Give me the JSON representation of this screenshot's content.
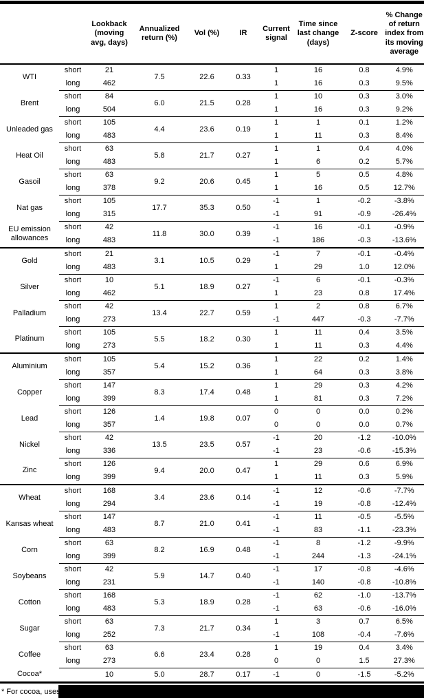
{
  "header": {
    "columns": [
      "Lookback (moving avg, days)",
      "Annualized return (%)",
      "Vol (%)",
      "IR",
      "Current signal",
      "Time since last change (days)",
      "Z-score",
      "% Change of return index from its moving average"
    ]
  },
  "footnote": "* For cocoa, uses c",
  "chart_data": {
    "type": "table",
    "sections": [
      {
        "name": "energy",
        "commodities": [
          {
            "name": "WTI",
            "annualized_return": "7.5",
            "vol": "22.6",
            "ir": "0.33",
            "legs": [
              {
                "label": "short",
                "lookback": "21",
                "signal": "1",
                "days_since_change": "16",
                "z_score": "0.8",
                "pct_change": "4.9%"
              },
              {
                "label": "long",
                "lookback": "462",
                "signal": "1",
                "days_since_change": "16",
                "z_score": "0.3",
                "pct_change": "9.5%"
              }
            ]
          },
          {
            "name": "Brent",
            "annualized_return": "6.0",
            "vol": "21.5",
            "ir": "0.28",
            "legs": [
              {
                "label": "short",
                "lookback": "84",
                "signal": "1",
                "days_since_change": "10",
                "z_score": "0.3",
                "pct_change": "3.0%"
              },
              {
                "label": "long",
                "lookback": "504",
                "signal": "1",
                "days_since_change": "16",
                "z_score": "0.3",
                "pct_change": "9.2%"
              }
            ]
          },
          {
            "name": "Unleaded gas",
            "annualized_return": "4.4",
            "vol": "23.6",
            "ir": "0.19",
            "legs": [
              {
                "label": "short",
                "lookback": "105",
                "signal": "1",
                "days_since_change": "1",
                "z_score": "0.1",
                "pct_change": "1.2%"
              },
              {
                "label": "long",
                "lookback": "483",
                "signal": "1",
                "days_since_change": "11",
                "z_score": "0.3",
                "pct_change": "8.4%"
              }
            ]
          },
          {
            "name": "Heat Oil",
            "annualized_return": "5.8",
            "vol": "21.7",
            "ir": "0.27",
            "legs": [
              {
                "label": "short",
                "lookback": "63",
                "signal": "1",
                "days_since_change": "1",
                "z_score": "0.4",
                "pct_change": "4.0%"
              },
              {
                "label": "long",
                "lookback": "483",
                "signal": "1",
                "days_since_change": "6",
                "z_score": "0.2",
                "pct_change": "5.7%"
              }
            ]
          },
          {
            "name": "Gasoil",
            "annualized_return": "9.2",
            "vol": "20.6",
            "ir": "0.45",
            "legs": [
              {
                "label": "short",
                "lookback": "63",
                "signal": "1",
                "days_since_change": "5",
                "z_score": "0.5",
                "pct_change": "4.8%"
              },
              {
                "label": "long",
                "lookback": "378",
                "signal": "1",
                "days_since_change": "16",
                "z_score": "0.5",
                "pct_change": "12.7%"
              }
            ]
          },
          {
            "name": "Nat gas",
            "annualized_return": "17.7",
            "vol": "35.3",
            "ir": "0.50",
            "legs": [
              {
                "label": "short",
                "lookback": "105",
                "signal": "-1",
                "days_since_change": "1",
                "z_score": "-0.2",
                "pct_change": "-3.8%"
              },
              {
                "label": "long",
                "lookback": "315",
                "signal": "-1",
                "days_since_change": "91",
                "z_score": "-0.9",
                "pct_change": "-26.4%"
              }
            ]
          },
          {
            "name": "EU emission allowances",
            "annualized_return": "11.8",
            "vol": "30.0",
            "ir": "0.39",
            "legs": [
              {
                "label": "short",
                "lookback": "42",
                "signal": "-1",
                "days_since_change": "16",
                "z_score": "-0.1",
                "pct_change": "-0.9%"
              },
              {
                "label": "long",
                "lookback": "483",
                "signal": "-1",
                "days_since_change": "186",
                "z_score": "-0.3",
                "pct_change": "-13.6%"
              }
            ]
          }
        ]
      },
      {
        "name": "precious-metals",
        "commodities": [
          {
            "name": "Gold",
            "annualized_return": "3.1",
            "vol": "10.5",
            "ir": "0.29",
            "legs": [
              {
                "label": "short",
                "lookback": "21",
                "signal": "-1",
                "days_since_change": "7",
                "z_score": "-0.1",
                "pct_change": "-0.4%"
              },
              {
                "label": "long",
                "lookback": "483",
                "signal": "1",
                "days_since_change": "29",
                "z_score": "1.0",
                "pct_change": "12.0%"
              }
            ]
          },
          {
            "name": "Silver",
            "annualized_return": "5.1",
            "vol": "18.9",
            "ir": "0.27",
            "legs": [
              {
                "label": "short",
                "lookback": "10",
                "signal": "-1",
                "days_since_change": "6",
                "z_score": "-0.1",
                "pct_change": "-0.3%"
              },
              {
                "label": "long",
                "lookback": "462",
                "signal": "1",
                "days_since_change": "23",
                "z_score": "0.8",
                "pct_change": "17.4%"
              }
            ]
          },
          {
            "name": "Palladium",
            "annualized_return": "13.4",
            "vol": "22.7",
            "ir": "0.59",
            "legs": [
              {
                "label": "short",
                "lookback": "42",
                "signal": "1",
                "days_since_change": "2",
                "z_score": "0.8",
                "pct_change": "6.7%"
              },
              {
                "label": "long",
                "lookback": "273",
                "signal": "-1",
                "days_since_change": "447",
                "z_score": "-0.3",
                "pct_change": "-7.7%"
              }
            ]
          },
          {
            "name": "Platinum",
            "annualized_return": "5.5",
            "vol": "18.2",
            "ir": "0.30",
            "legs": [
              {
                "label": "short",
                "lookback": "105",
                "signal": "1",
                "days_since_change": "11",
                "z_score": "0.4",
                "pct_change": "3.5%"
              },
              {
                "label": "long",
                "lookback": "273",
                "signal": "1",
                "days_since_change": "11",
                "z_score": "0.3",
                "pct_change": "4.4%"
              }
            ]
          }
        ]
      },
      {
        "name": "base-metals",
        "commodities": [
          {
            "name": "Aluminium",
            "annualized_return": "5.4",
            "vol": "15.2",
            "ir": "0.36",
            "legs": [
              {
                "label": "short",
                "lookback": "105",
                "signal": "1",
                "days_since_change": "22",
                "z_score": "0.2",
                "pct_change": "1.4%"
              },
              {
                "label": "long",
                "lookback": "357",
                "signal": "1",
                "days_since_change": "64",
                "z_score": "0.3",
                "pct_change": "3.8%"
              }
            ]
          },
          {
            "name": "Copper",
            "annualized_return": "8.3",
            "vol": "17.4",
            "ir": "0.48",
            "legs": [
              {
                "label": "short",
                "lookback": "147",
                "signal": "1",
                "days_since_change": "29",
                "z_score": "0.3",
                "pct_change": "4.2%"
              },
              {
                "label": "long",
                "lookback": "399",
                "signal": "1",
                "days_since_change": "81",
                "z_score": "0.3",
                "pct_change": "7.2%"
              }
            ]
          },
          {
            "name": "Lead",
            "annualized_return": "1.4",
            "vol": "19.8",
            "ir": "0.07",
            "legs": [
              {
                "label": "short",
                "lookback": "126",
                "signal": "0",
                "days_since_change": "0",
                "z_score": "0.0",
                "pct_change": "0.2%"
              },
              {
                "label": "long",
                "lookback": "357",
                "signal": "0",
                "days_since_change": "0",
                "z_score": "0.0",
                "pct_change": "0.7%"
              }
            ]
          },
          {
            "name": "Nickel",
            "annualized_return": "13.5",
            "vol": "23.5",
            "ir": "0.57",
            "legs": [
              {
                "label": "short",
                "lookback": "42",
                "signal": "-1",
                "days_since_change": "20",
                "z_score": "-1.2",
                "pct_change": "-10.0%"
              },
              {
                "label": "long",
                "lookback": "336",
                "signal": "-1",
                "days_since_change": "23",
                "z_score": "-0.6",
                "pct_change": "-15.3%"
              }
            ]
          },
          {
            "name": "Zinc",
            "annualized_return": "9.4",
            "vol": "20.0",
            "ir": "0.47",
            "legs": [
              {
                "label": "short",
                "lookback": "126",
                "signal": "1",
                "days_since_change": "29",
                "z_score": "0.6",
                "pct_change": "6.9%"
              },
              {
                "label": "long",
                "lookback": "399",
                "signal": "1",
                "days_since_change": "11",
                "z_score": "0.3",
                "pct_change": "5.9%"
              }
            ]
          }
        ]
      },
      {
        "name": "agriculture",
        "commodities": [
          {
            "name": "Wheat",
            "annualized_return": "3.4",
            "vol": "23.6",
            "ir": "0.14",
            "legs": [
              {
                "label": "short",
                "lookback": "168",
                "signal": "-1",
                "days_since_change": "12",
                "z_score": "-0.6",
                "pct_change": "-7.7%"
              },
              {
                "label": "long",
                "lookback": "294",
                "signal": "-1",
                "days_since_change": "19",
                "z_score": "-0.8",
                "pct_change": "-12.4%"
              }
            ]
          },
          {
            "name": "Kansas wheat",
            "annualized_return": "8.7",
            "vol": "21.0",
            "ir": "0.41",
            "legs": [
              {
                "label": "short",
                "lookback": "147",
                "signal": "-1",
                "days_since_change": "11",
                "z_score": "-0.5",
                "pct_change": "-5.5%"
              },
              {
                "label": "long",
                "lookback": "483",
                "signal": "-1",
                "days_since_change": "83",
                "z_score": "-1.1",
                "pct_change": "-23.3%"
              }
            ]
          },
          {
            "name": "Corn",
            "annualized_return": "8.2",
            "vol": "16.9",
            "ir": "0.48",
            "legs": [
              {
                "label": "short",
                "lookback": "63",
                "signal": "-1",
                "days_since_change": "8",
                "z_score": "-1.2",
                "pct_change": "-9.9%"
              },
              {
                "label": "long",
                "lookback": "399",
                "signal": "-1",
                "days_since_change": "244",
                "z_score": "-1.3",
                "pct_change": "-24.1%"
              }
            ]
          },
          {
            "name": "Soybeans",
            "annualized_return": "5.9",
            "vol": "14.7",
            "ir": "0.40",
            "legs": [
              {
                "label": "short",
                "lookback": "42",
                "signal": "-1",
                "days_since_change": "17",
                "z_score": "-0.8",
                "pct_change": "-4.6%"
              },
              {
                "label": "long",
                "lookback": "231",
                "signal": "-1",
                "days_since_change": "140",
                "z_score": "-0.8",
                "pct_change": "-10.8%"
              }
            ]
          },
          {
            "name": "Cotton",
            "annualized_return": "5.3",
            "vol": "18.9",
            "ir": "0.28",
            "legs": [
              {
                "label": "short",
                "lookback": "168",
                "signal": "-1",
                "days_since_change": "62",
                "z_score": "-1.0",
                "pct_change": "-13.7%"
              },
              {
                "label": "long",
                "lookback": "483",
                "signal": "-1",
                "days_since_change": "63",
                "z_score": "-0.6",
                "pct_change": "-16.0%"
              }
            ]
          },
          {
            "name": "Sugar",
            "annualized_return": "7.3",
            "vol": "21.7",
            "ir": "0.34",
            "legs": [
              {
                "label": "short",
                "lookback": "63",
                "signal": "1",
                "days_since_change": "3",
                "z_score": "0.7",
                "pct_change": "6.5%"
              },
              {
                "label": "long",
                "lookback": "252",
                "signal": "-1",
                "days_since_change": "108",
                "z_score": "-0.4",
                "pct_change": "-7.6%"
              }
            ]
          },
          {
            "name": "Coffee",
            "annualized_return": "6.6",
            "vol": "23.4",
            "ir": "0.28",
            "legs": [
              {
                "label": "short",
                "lookback": "63",
                "signal": "1",
                "days_since_change": "19",
                "z_score": "0.4",
                "pct_change": "3.4%"
              },
              {
                "label": "long",
                "lookback": "273",
                "signal": "0",
                "days_since_change": "0",
                "z_score": "1.5",
                "pct_change": "27.3%"
              }
            ]
          },
          {
            "name": "Cocoa*",
            "annualized_return": "5.0",
            "vol": "28.7",
            "ir": "0.17",
            "legs": [
              {
                "label": "",
                "lookback": "10",
                "signal": "-1",
                "days_since_change": "0",
                "z_score": "-1.5",
                "pct_change": "-5.2%"
              }
            ]
          }
        ]
      }
    ]
  }
}
